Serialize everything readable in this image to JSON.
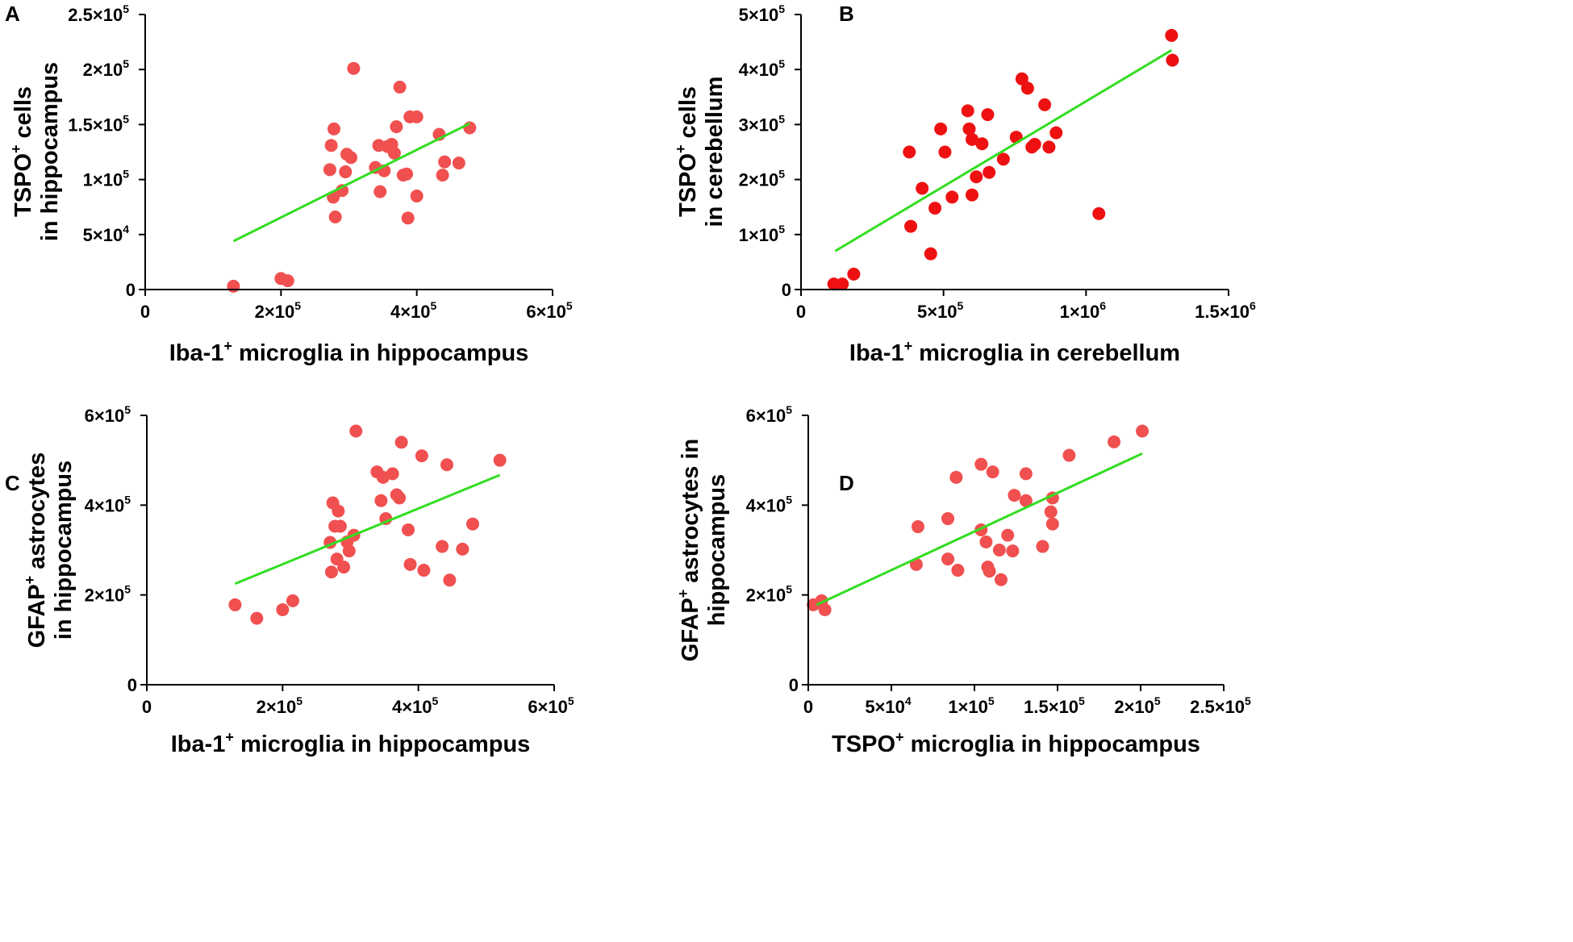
{
  "figure": {
    "description_panels": [
      "A",
      "B",
      "C",
      "D"
    ]
  },
  "chart_data": [
    {
      "panel": "A",
      "type": "scatter",
      "xlabel": {
        "pre": "Iba-1",
        "sup": "+",
        "post": " microglia in hippocampus"
      },
      "ylabel": [
        {
          "pre": "TSPO",
          "sup": "+",
          "post": " cells"
        },
        {
          "pre": "in hippocampus",
          "sup": "",
          "post": ""
        }
      ],
      "xlim": [
        0,
        600000
      ],
      "ylim": [
        0,
        250000
      ],
      "xticks": [
        {
          "value": 0,
          "mant": "0",
          "exp": ""
        },
        {
          "value": 200000,
          "mant": "2×10",
          "exp": "5"
        },
        {
          "value": 400000,
          "mant": "4×10",
          "exp": "5"
        },
        {
          "value": 600000,
          "mant": "6×10",
          "exp": "5"
        }
      ],
      "yticks": [
        {
          "value": 0,
          "mant": "0",
          "exp": ""
        },
        {
          "value": 50000,
          "mant": "5×10",
          "exp": "4"
        },
        {
          "value": 100000,
          "mant": "1×10",
          "exp": "5"
        },
        {
          "value": 150000,
          "mant": "1.5×10",
          "exp": "5"
        },
        {
          "value": 200000,
          "mant": "2×10",
          "exp": "5"
        },
        {
          "value": 250000,
          "mant": "2.5×10",
          "exp": "5"
        }
      ],
      "points": [
        [
          130000,
          3000
        ],
        [
          200000,
          10000
        ],
        [
          210000,
          8000
        ],
        [
          272000,
          109000
        ],
        [
          274000,
          131000
        ],
        [
          277000,
          84000
        ],
        [
          278000,
          146000
        ],
        [
          280000,
          66000
        ],
        [
          290000,
          90000
        ],
        [
          295000,
          107000
        ],
        [
          297000,
          123000
        ],
        [
          303000,
          120000
        ],
        [
          307000,
          201000
        ],
        [
          339000,
          111000
        ],
        [
          344000,
          131000
        ],
        [
          346000,
          89000
        ],
        [
          352000,
          108000
        ],
        [
          357000,
          130000
        ],
        [
          363000,
          132000
        ],
        [
          367000,
          124000
        ],
        [
          370000,
          148000
        ],
        [
          375000,
          184000
        ],
        [
          380000,
          104000
        ],
        [
          385000,
          105000
        ],
        [
          387000,
          65000
        ],
        [
          390000,
          157000
        ],
        [
          400000,
          85000
        ],
        [
          400000,
          157000
        ],
        [
          433000,
          141000
        ],
        [
          438000,
          104000
        ],
        [
          441000,
          116000
        ],
        [
          462000,
          115000
        ],
        [
          478000,
          147000
        ]
      ],
      "fit": {
        "x": [
          130000,
          478000
        ],
        "y": [
          44000,
          151000
        ]
      },
      "point_color": "#f05050",
      "line_color": "#33dd22"
    },
    {
      "panel": "B",
      "type": "scatter",
      "xlabel": {
        "pre": "Iba-1",
        "sup": "+",
        "post": " microglia in cerebellum"
      },
      "ylabel": [
        {
          "pre": "TSPO",
          "sup": "+",
          "post": " cells"
        },
        {
          "pre": "in cerebellum",
          "sup": "",
          "post": ""
        }
      ],
      "xlim": [
        0,
        1500000
      ],
      "ylim": [
        0,
        500000
      ],
      "xticks": [
        {
          "value": 0,
          "mant": "0",
          "exp": ""
        },
        {
          "value": 500000,
          "mant": "5×10",
          "exp": "5"
        },
        {
          "value": 1000000,
          "mant": "1×10",
          "exp": "6"
        },
        {
          "value": 1500000,
          "mant": "1.5×10",
          "exp": "6"
        }
      ],
      "yticks": [
        {
          "value": 0,
          "mant": "0",
          "exp": ""
        },
        {
          "value": 100000,
          "mant": "1×10",
          "exp": "5"
        },
        {
          "value": 200000,
          "mant": "2×10",
          "exp": "5"
        },
        {
          "value": 300000,
          "mant": "3×10",
          "exp": "5"
        },
        {
          "value": 400000,
          "mant": "4×10",
          "exp": "5"
        },
        {
          "value": 500000,
          "mant": "5×10",
          "exp": "5"
        }
      ],
      "points": [
        [
          115000,
          10000
        ],
        [
          145000,
          10000
        ],
        [
          185000,
          28000
        ],
        [
          380000,
          250000
        ],
        [
          385000,
          115000
        ],
        [
          425000,
          184000
        ],
        [
          455000,
          65000
        ],
        [
          470000,
          148000
        ],
        [
          490000,
          292000
        ],
        [
          505000,
          250000
        ],
        [
          530000,
          168000
        ],
        [
          585000,
          325000
        ],
        [
          590000,
          292000
        ],
        [
          600000,
          273000
        ],
        [
          600000,
          172000
        ],
        [
          615000,
          205000
        ],
        [
          635000,
          265000
        ],
        [
          655000,
          318000
        ],
        [
          660000,
          213000
        ],
        [
          710000,
          237000
        ],
        [
          755000,
          277000
        ],
        [
          775000,
          383000
        ],
        [
          795000,
          366000
        ],
        [
          810000,
          259000
        ],
        [
          820000,
          264000
        ],
        [
          855000,
          336000
        ],
        [
          870000,
          259000
        ],
        [
          895000,
          285000
        ],
        [
          1045000,
          138000
        ],
        [
          1300000,
          462000
        ],
        [
          1303000,
          417000
        ]
      ],
      "fit": {
        "x": [
          120000,
          1300000
        ],
        "y": [
          70000,
          435000
        ]
      },
      "point_color": "#ee1111",
      "line_color": "#33dd22"
    },
    {
      "panel": "C",
      "type": "scatter",
      "xlabel": {
        "pre": "Iba-1",
        "sup": "+",
        "post": " microglia in hippocampus"
      },
      "ylabel": [
        {
          "pre": "GFAP",
          "sup": "+",
          "post": " astrocytes"
        },
        {
          "pre": "in hippocampus",
          "sup": "",
          "post": ""
        }
      ],
      "xlim": [
        0,
        600000
      ],
      "ylim": [
        0,
        600000
      ],
      "xticks": [
        {
          "value": 0,
          "mant": "0",
          "exp": ""
        },
        {
          "value": 200000,
          "mant": "2×10",
          "exp": "5"
        },
        {
          "value": 400000,
          "mant": "4×10",
          "exp": "5"
        },
        {
          "value": 600000,
          "mant": "6×10",
          "exp": "5"
        }
      ],
      "yticks": [
        {
          "value": 0,
          "mant": "0",
          "exp": ""
        },
        {
          "value": 200000,
          "mant": "2×10",
          "exp": "5"
        },
        {
          "value": 400000,
          "mant": "4×10",
          "exp": "5"
        },
        {
          "value": 600000,
          "mant": "6×10",
          "exp": "5"
        }
      ],
      "points": [
        [
          130000,
          178000
        ],
        [
          162000,
          148000
        ],
        [
          200000,
          167000
        ],
        [
          215000,
          187000
        ],
        [
          270000,
          317000
        ],
        [
          272000,
          251000
        ],
        [
          274000,
          405000
        ],
        [
          277000,
          353000
        ],
        [
          280000,
          280000
        ],
        [
          282000,
          387000
        ],
        [
          285000,
          353000
        ],
        [
          290000,
          262000
        ],
        [
          295000,
          318000
        ],
        [
          298000,
          298000
        ],
        [
          305000,
          333000
        ],
        [
          308000,
          565000
        ],
        [
          339000,
          474000
        ],
        [
          345000,
          410000
        ],
        [
          348000,
          462000
        ],
        [
          352000,
          370000
        ],
        [
          362000,
          470000
        ],
        [
          368000,
          423000
        ],
        [
          372000,
          416000
        ],
        [
          375000,
          540000
        ],
        [
          385000,
          345000
        ],
        [
          388000,
          268000
        ],
        [
          405000,
          510000
        ],
        [
          408000,
          255000
        ],
        [
          435000,
          308000
        ],
        [
          442000,
          490000
        ],
        [
          446000,
          233000
        ],
        [
          465000,
          302000
        ],
        [
          480000,
          358000
        ],
        [
          520000,
          500000
        ]
      ],
      "fit": {
        "x": [
          130000,
          520000
        ],
        "y": [
          225000,
          467000
        ]
      },
      "point_color": "#f05050",
      "line_color": "#33dd22"
    },
    {
      "panel": "D",
      "type": "scatter",
      "xlabel": {
        "pre": "TSPO",
        "sup": "+",
        "post": " microglia in hippocampus"
      },
      "ylabel": [
        {
          "pre": "GFAP",
          "sup": "+",
          "post": " astrocytes in"
        },
        {
          "pre": "hippocampus",
          "sup": "",
          "post": ""
        }
      ],
      "xlim": [
        0,
        250000
      ],
      "ylim": [
        0,
        600000
      ],
      "xticks": [
        {
          "value": 0,
          "mant": "0",
          "exp": ""
        },
        {
          "value": 50000,
          "mant": "5×10",
          "exp": "4"
        },
        {
          "value": 100000,
          "mant": "1×10",
          "exp": "5"
        },
        {
          "value": 150000,
          "mant": "1.5×10",
          "exp": "5"
        },
        {
          "value": 200000,
          "mant": "2×10",
          "exp": "5"
        },
        {
          "value": 250000,
          "mant": "2.5×10",
          "exp": "5"
        }
      ],
      "yticks": [
        {
          "value": 0,
          "mant": "0",
          "exp": ""
        },
        {
          "value": 200000,
          "mant": "2×10",
          "exp": "5"
        },
        {
          "value": 400000,
          "mant": "4×10",
          "exp": "5"
        },
        {
          "value": 600000,
          "mant": "6×10",
          "exp": "5"
        }
      ],
      "points": [
        [
          3000,
          178000
        ],
        [
          8000,
          187000
        ],
        [
          10000,
          167000
        ],
        [
          66000,
          352000
        ],
        [
          65000,
          268000
        ],
        [
          84000,
          370000
        ],
        [
          84000,
          280000
        ],
        [
          89000,
          462000
        ],
        [
          90000,
          255000
        ],
        [
          104000,
          491000
        ],
        [
          104000,
          345000
        ],
        [
          107000,
          318000
        ],
        [
          108000,
          262000
        ],
        [
          109000,
          253000
        ],
        [
          111000,
          474000
        ],
        [
          115000,
          300000
        ],
        [
          116000,
          234000
        ],
        [
          120000,
          333000
        ],
        [
          123000,
          298000
        ],
        [
          124000,
          422000
        ],
        [
          131000,
          410000
        ],
        [
          131000,
          470000
        ],
        [
          141000,
          308000
        ],
        [
          146000,
          385000
        ],
        [
          147000,
          358000
        ],
        [
          147000,
          416000
        ],
        [
          157000,
          511000
        ],
        [
          184000,
          541000
        ],
        [
          201000,
          565000
        ]
      ],
      "fit": {
        "x": [
          5000,
          201000
        ],
        "y": [
          178000,
          515000
        ]
      },
      "point_color": "#f05050",
      "line_color": "#33dd22"
    }
  ]
}
